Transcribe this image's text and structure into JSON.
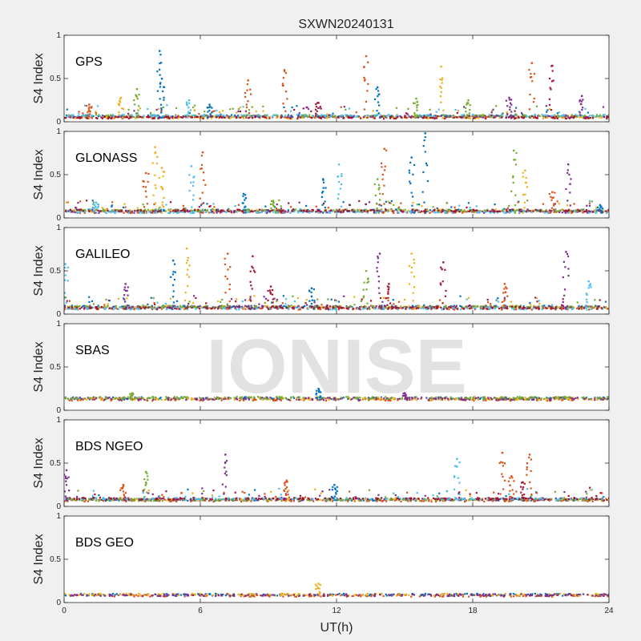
{
  "title": "SXWN20240131",
  "watermark": "IONISE",
  "xlabel": "UT(h)",
  "colors": {
    "background": "#f0f0f0",
    "axes_bg": "#ffffff",
    "palette": [
      "#0072bd",
      "#d95319",
      "#edb120",
      "#7e2f8e",
      "#77ac30",
      "#4dbeee",
      "#a2142f"
    ]
  },
  "chart_data": [
    {
      "type": "scatter",
      "panel": "GPS",
      "ylabel": "S4 Index",
      "xlim": [
        0,
        24
      ],
      "ylim": [
        0,
        1
      ],
      "xticks": [
        "0",
        "6",
        "12",
        "18",
        "24"
      ],
      "yticks": [
        "0",
        "0.5",
        "1"
      ],
      "baseline": 0.05,
      "spikes": [
        {
          "x": 1.1,
          "y": 0.2,
          "c": 1
        },
        {
          "x": 2.5,
          "y": 0.28,
          "c": 2
        },
        {
          "x": 3.2,
          "y": 0.38,
          "c": 4
        },
        {
          "x": 4.2,
          "y": 0.82,
          "c": 0
        },
        {
          "x": 4.3,
          "y": 0.5,
          "c": 0
        },
        {
          "x": 5.5,
          "y": 0.25,
          "c": 5
        },
        {
          "x": 6.4,
          "y": 0.2,
          "c": 0
        },
        {
          "x": 8.1,
          "y": 0.48,
          "c": 1
        },
        {
          "x": 9.7,
          "y": 0.6,
          "c": 1
        },
        {
          "x": 11.2,
          "y": 0.22,
          "c": 6
        },
        {
          "x": 13.3,
          "y": 0.76,
          "c": 1
        },
        {
          "x": 13.8,
          "y": 0.4,
          "c": 0
        },
        {
          "x": 15.5,
          "y": 0.27,
          "c": 4
        },
        {
          "x": 16.6,
          "y": 0.64,
          "c": 2
        },
        {
          "x": 17.8,
          "y": 0.25,
          "c": 4
        },
        {
          "x": 19.6,
          "y": 0.28,
          "c": 3
        },
        {
          "x": 20.6,
          "y": 0.68,
          "c": 1
        },
        {
          "x": 21.5,
          "y": 0.65,
          "c": 6
        },
        {
          "x": 22.8,
          "y": 0.3,
          "c": 3
        }
      ]
    },
    {
      "type": "scatter",
      "panel": "GLONASS",
      "ylabel": "S4 Index",
      "xlim": [
        0,
        24
      ],
      "ylim": [
        0,
        1
      ],
      "xticks": [
        "0",
        "6",
        "12",
        "18",
        "24"
      ],
      "yticks": [
        "0",
        "0.5",
        "1"
      ],
      "baseline": 0.06,
      "spikes": [
        {
          "x": 1.4,
          "y": 0.18,
          "c": 5
        },
        {
          "x": 3.6,
          "y": 0.52,
          "c": 1
        },
        {
          "x": 4.0,
          "y": 0.82,
          "c": 2
        },
        {
          "x": 4.3,
          "y": 0.58,
          "c": 2
        },
        {
          "x": 5.6,
          "y": 0.6,
          "c": 5
        },
        {
          "x": 6.1,
          "y": 0.76,
          "c": 1
        },
        {
          "x": 7.9,
          "y": 0.28,
          "c": 0
        },
        {
          "x": 9.2,
          "y": 0.2,
          "c": 4
        },
        {
          "x": 11.4,
          "y": 0.45,
          "c": 0
        },
        {
          "x": 12.1,
          "y": 0.62,
          "c": 5
        },
        {
          "x": 13.8,
          "y": 0.45,
          "c": 4
        },
        {
          "x": 14.1,
          "y": 0.8,
          "c": 1
        },
        {
          "x": 15.3,
          "y": 0.7,
          "c": 0
        },
        {
          "x": 15.9,
          "y": 0.98,
          "c": 0
        },
        {
          "x": 19.8,
          "y": 0.78,
          "c": 4
        },
        {
          "x": 20.3,
          "y": 0.55,
          "c": 2
        },
        {
          "x": 21.5,
          "y": 0.3,
          "c": 1
        },
        {
          "x": 22.2,
          "y": 0.62,
          "c": 3
        },
        {
          "x": 23.6,
          "y": 0.15,
          "c": 0
        }
      ]
    },
    {
      "type": "scatter",
      "panel": "GALILEO",
      "ylabel": "S4 Index",
      "xlim": [
        0,
        24
      ],
      "ylim": [
        0,
        1
      ],
      "xticks": [
        "0",
        "6",
        "12",
        "18",
        "24"
      ],
      "yticks": [
        "0",
        "0.5",
        "1"
      ],
      "baseline": 0.06,
      "spikes": [
        {
          "x": 0.05,
          "y": 0.58,
          "c": 5
        },
        {
          "x": 2.7,
          "y": 0.35,
          "c": 3
        },
        {
          "x": 4.8,
          "y": 0.62,
          "c": 0
        },
        {
          "x": 5.4,
          "y": 0.76,
          "c": 2
        },
        {
          "x": 7.2,
          "y": 0.7,
          "c": 1
        },
        {
          "x": 8.3,
          "y": 0.67,
          "c": 6
        },
        {
          "x": 9.1,
          "y": 0.32,
          "c": 6
        },
        {
          "x": 10.9,
          "y": 0.3,
          "c": 0
        },
        {
          "x": 13.3,
          "y": 0.5,
          "c": 4
        },
        {
          "x": 13.9,
          "y": 0.7,
          "c": 3
        },
        {
          "x": 14.3,
          "y": 0.35,
          "c": 6
        },
        {
          "x": 15.3,
          "y": 0.7,
          "c": 2
        },
        {
          "x": 16.7,
          "y": 0.6,
          "c": 6
        },
        {
          "x": 19.4,
          "y": 0.35,
          "c": 1
        },
        {
          "x": 22.1,
          "y": 0.72,
          "c": 3
        },
        {
          "x": 23.1,
          "y": 0.38,
          "c": 5
        }
      ]
    },
    {
      "type": "scatter",
      "panel": "SBAS",
      "ylabel": "S4 Index",
      "xlim": [
        0,
        24
      ],
      "ylim": [
        0,
        1
      ],
      "xticks": [
        "0",
        "6",
        "12",
        "18",
        "24"
      ],
      "yticks": [
        "0",
        "0.5",
        "1"
      ],
      "baseline": 0.12,
      "spikes": [
        {
          "x": 11.2,
          "y": 0.25,
          "c": 0
        },
        {
          "x": 3.0,
          "y": 0.2,
          "c": 4
        },
        {
          "x": 15.0,
          "y": 0.2,
          "c": 3
        }
      ]
    },
    {
      "type": "scatter",
      "panel": "BDS NGEO",
      "ylabel": "S4 Index",
      "xlim": [
        0,
        24
      ],
      "ylim": [
        0,
        1
      ],
      "xticks": [
        "0",
        "6",
        "12",
        "18",
        "24"
      ],
      "yticks": [
        "0",
        "0.5",
        "1"
      ],
      "baseline": 0.07,
      "spikes": [
        {
          "x": 0.1,
          "y": 0.42,
          "c": 3
        },
        {
          "x": 2.6,
          "y": 0.25,
          "c": 1
        },
        {
          "x": 3.6,
          "y": 0.4,
          "c": 4
        },
        {
          "x": 7.1,
          "y": 0.6,
          "c": 3
        },
        {
          "x": 9.8,
          "y": 0.3,
          "c": 1
        },
        {
          "x": 11.9,
          "y": 0.25,
          "c": 0
        },
        {
          "x": 17.3,
          "y": 0.55,
          "c": 5
        },
        {
          "x": 19.3,
          "y": 0.62,
          "c": 1
        },
        {
          "x": 19.7,
          "y": 0.35,
          "c": 1
        },
        {
          "x": 20.5,
          "y": 0.6,
          "c": 1
        },
        {
          "x": 20.2,
          "y": 0.28,
          "c": 6
        }
      ]
    },
    {
      "type": "scatter",
      "panel": "BDS GEO",
      "ylabel": "S4 Index",
      "xlim": [
        0,
        24
      ],
      "ylim": [
        0,
        1
      ],
      "xticks": [
        "0",
        "6",
        "12",
        "18",
        "24"
      ],
      "yticks": [
        "0",
        "0.5",
        "1"
      ],
      "baseline": 0.08,
      "spikes": [
        {
          "x": 11.2,
          "y": 0.22,
          "c": 2
        }
      ]
    }
  ]
}
